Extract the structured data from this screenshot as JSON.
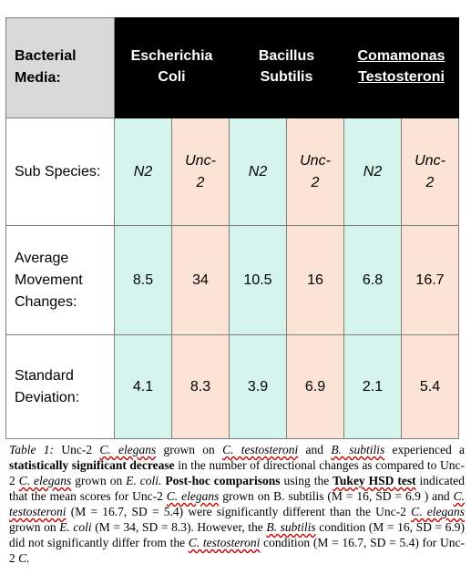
{
  "table": {
    "header": {
      "label_line1": "Bacterial",
      "label_line2": "Media:",
      "media": [
        {
          "line1": "Escherichia",
          "line2": "Coli"
        },
        {
          "line1": "Bacillus",
          "line2": "Subtilis"
        },
        {
          "line1": "Comamonas",
          "line2": "Testosteroni"
        }
      ]
    },
    "subspecies": {
      "label": "Sub Species:",
      "values": [
        {
          "line1": "N2",
          "line2": ""
        },
        {
          "line1": "Unc-",
          "line2": "2"
        },
        {
          "line1": "N2",
          "line2": ""
        },
        {
          "line1": "Unc-",
          "line2": "2"
        },
        {
          "line1": "N2",
          "line2": ""
        },
        {
          "line1": "Unc-",
          "line2": "2"
        }
      ]
    },
    "average": {
      "label_line1": "Average",
      "label_line2": "Movement",
      "label_line3": "Changes:",
      "values": [
        "8.5",
        "34",
        "10.5",
        "16",
        "6.8",
        "16.7"
      ]
    },
    "std": {
      "label_line1": "Standard",
      "label_line2": "Deviation:",
      "values": [
        "4.1",
        "8.3",
        "3.9",
        "6.9",
        "2.1",
        "5.4"
      ]
    }
  },
  "caption": {
    "p1": "Table 1:",
    "p2": " Unc-2 ",
    "p3": "C. elegans",
    "p4": " grown on ",
    "p5": "C. testosteroni",
    "p6": " and ",
    "p7": "B. subtilis",
    "p8": " experienced a ",
    "p9": "statistically significant decrease",
    "p10": " in the number of directional changes as compared to Unc-2 ",
    "p11": "C. elegans",
    "p12": " grown on ",
    "p13": "E. coli.",
    "p14": " ",
    "p15": "Post-hoc comparisons",
    "p16": " using the ",
    "p17": "Tukey HSD test",
    "p18": " indicated that the mean scores for Unc-2 ",
    "p19": "C. elegans",
    "p20": " grown on B. subtilis (M = 16, SD = 6.9 ) and ",
    "p21": "C. testosteroni",
    "p22": " (M = 16.7, SD = 5.4)  were significantly different than the Unc-2 ",
    "p23": "C. elegans",
    "p24": " grown on ",
    "p25": "E. coli",
    "p26": " (M = 34, SD = 8.3). However, the ",
    "p27": "B. subtilis",
    "p28": " condition (M = 16, SD = 6.9) did not significantly differ from the ",
    "p29": "C. testosteroni",
    "p30": " condition (M = 16.7, SD = 5.4) for Unc-2 ",
    "p31": "C."
  }
}
